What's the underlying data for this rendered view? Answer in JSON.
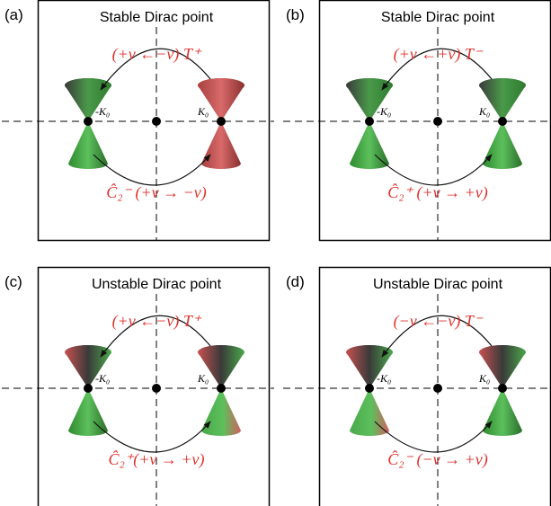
{
  "panels": [
    {
      "label": "(a)",
      "title": "Stable Dirac point",
      "top": "(+ν ←−ν) T⁺",
      "bottom": "Ĉ₂⁻ (+ν → −ν)",
      "left_label": "-K₀",
      "right_label": "K₀"
    },
    {
      "label": "(b)",
      "title": "Stable Dirac point",
      "top": "(+ν ←+ν) T⁻",
      "bottom": "Ĉ₂⁺ (+ν → +ν)",
      "left_label": "-K₀",
      "right_label": "K₀"
    },
    {
      "label": "(c)",
      "title": "Unstable Dirac point",
      "top": "(+ν ←−ν) T⁺",
      "bottom": "Ĉ₂⁺(+ν → +ν)",
      "left_label": "-K₀",
      "right_label": "K₀"
    },
    {
      "label": "(d)",
      "title": "Unstable Dirac point",
      "top": "(−ν ←−ν) T⁻",
      "bottom": "Ĉ₂⁻ (−ν → +ν)",
      "left_label": "-K₀",
      "right_label": "K₀"
    }
  ]
}
